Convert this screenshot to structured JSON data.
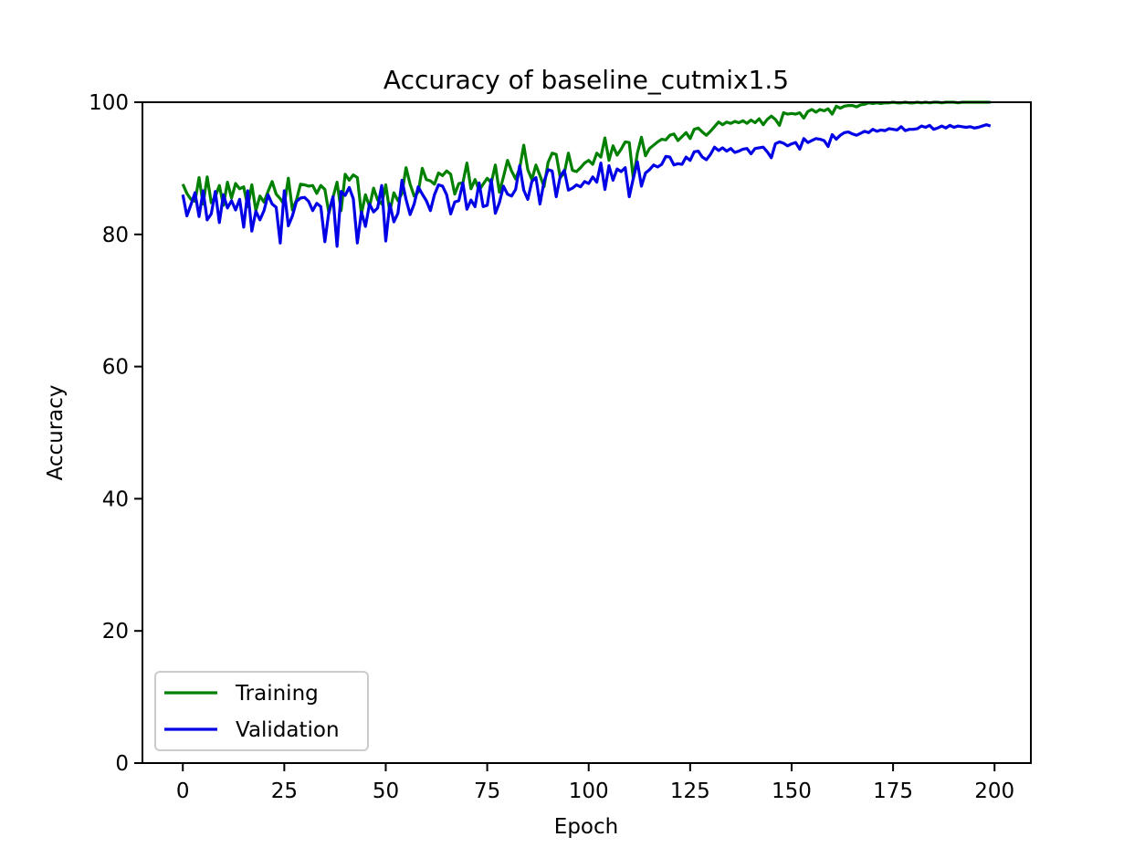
{
  "chart_data": {
    "type": "line",
    "title": "Accuracy of baseline_cutmix1.5",
    "x_label": "Epoch",
    "y_label": "Accuracy",
    "x": [
      0,
      1,
      2,
      3,
      4,
      5,
      6,
      7,
      8,
      9,
      10,
      11,
      12,
      13,
      14,
      15,
      16,
      17,
      18,
      19,
      20,
      21,
      22,
      23,
      24,
      25,
      26,
      27,
      28,
      29,
      30,
      31,
      32,
      33,
      34,
      35,
      36,
      37,
      38,
      39,
      40,
      41,
      42,
      43,
      44,
      45,
      46,
      47,
      48,
      49,
      50,
      51,
      52,
      53,
      54,
      55,
      56,
      57,
      58,
      59,
      60,
      61,
      62,
      63,
      64,
      65,
      66,
      67,
      68,
      69,
      70,
      71,
      72,
      73,
      74,
      75,
      76,
      77,
      78,
      79,
      80,
      81,
      82,
      83,
      84,
      85,
      86,
      87,
      88,
      89,
      90,
      91,
      92,
      93,
      94,
      95,
      96,
      97,
      98,
      99,
      100,
      101,
      102,
      103,
      104,
      105,
      106,
      107,
      108,
      109,
      110,
      111,
      112,
      113,
      114,
      115,
      116,
      117,
      118,
      119,
      120,
      121,
      122,
      123,
      124,
      125,
      126,
      127,
      128,
      129,
      130,
      131,
      132,
      133,
      134,
      135,
      136,
      137,
      138,
      139,
      140,
      141,
      142,
      143,
      144,
      145,
      146,
      147,
      148,
      149,
      150,
      151,
      152,
      153,
      154,
      155,
      156,
      157,
      158,
      159,
      160,
      161,
      162,
      163,
      164,
      165,
      166,
      167,
      168,
      169,
      170,
      171,
      172,
      173,
      174,
      175,
      176,
      177,
      178,
      179,
      180,
      181,
      182,
      183,
      184,
      185,
      186,
      187,
      188,
      189,
      190,
      191,
      192,
      193,
      194,
      195,
      196,
      197,
      198,
      199
    ],
    "series": [
      {
        "name": "Training",
        "color": "#008000",
        "values": [
          87.6,
          86.2,
          85.3,
          85.0,
          88.6,
          84.6,
          88.7,
          84.8,
          85.7,
          87.4,
          84.4,
          87.9,
          85.5,
          87.7,
          86.9,
          87.2,
          84.2,
          87.5,
          83.6,
          85.8,
          84.9,
          86.5,
          88.0,
          86.1,
          85.4,
          84.5,
          88.5,
          83.7,
          85.2,
          87.6,
          87.5,
          87.3,
          87.4,
          86.2,
          87.4,
          86.8,
          83.2,
          85.6,
          87.9,
          83.6,
          89.1,
          88.2,
          89.0,
          88.6,
          83.1,
          86.0,
          84.2,
          87.0,
          85.2,
          84.6,
          87.5,
          83.4,
          86.3,
          85.1,
          86.2,
          90.1,
          87.6,
          85.8,
          86.4,
          90.0,
          88.3,
          88.1,
          87.6,
          89.3,
          88.9,
          89.6,
          89.1,
          86.1,
          87.7,
          87.8,
          90.8,
          86.9,
          88.3,
          86.7,
          87.6,
          88.5,
          87.8,
          90.5,
          86.4,
          88.7,
          91.2,
          89.6,
          88.4,
          90.0,
          93.5,
          89.8,
          88.3,
          90.5,
          88.9,
          87.2,
          90.9,
          92.3,
          92.1,
          88.6,
          89.3,
          92.3,
          89.7,
          89.5,
          90.1,
          90.8,
          91.2,
          90.6,
          92.3,
          91.7,
          94.6,
          91.2,
          93.4,
          92.0,
          92.9,
          94.0,
          93.9,
          88.4,
          92.3,
          94.7,
          91.9,
          93.0,
          93.5,
          94.0,
          94.4,
          94.3,
          95.0,
          95.2,
          94.2,
          94.8,
          95.4,
          94.5,
          95.9,
          96.1,
          95.5,
          95.0,
          95.6,
          96.3,
          97.0,
          96.6,
          97.0,
          96.8,
          97.1,
          96.9,
          97.2,
          96.8,
          97.3,
          96.9,
          97.5,
          96.6,
          97.4,
          97.9,
          97.4,
          96.5,
          98.4,
          98.2,
          98.3,
          98.2,
          98.4,
          97.6,
          98.6,
          98.9,
          98.5,
          98.9,
          98.7,
          99.0,
          98.2,
          99.4,
          99.1,
          99.4,
          99.5,
          99.5,
          99.3,
          99.6,
          99.7,
          99.9,
          99.8,
          99.9,
          99.8,
          99.9,
          99.9,
          100.0,
          99.9,
          99.9,
          100.0,
          99.9,
          99.9,
          100.0,
          99.9,
          100.0,
          99.9,
          100.0,
          100.0,
          99.9,
          100.0,
          100.0,
          100.0,
          99.9,
          100.0,
          100.0,
          100.0,
          100.0,
          100.0,
          100.0,
          100.0,
          100.0
        ]
      },
      {
        "name": "Validation",
        "color": "#0000e6",
        "values": [
          86.0,
          82.8,
          84.5,
          86.3,
          82.7,
          86.6,
          82.2,
          83.1,
          86.5,
          81.8,
          86.0,
          84.0,
          85.1,
          83.7,
          85.3,
          81.1,
          86.6,
          80.5,
          83.5,
          82.2,
          83.6,
          86.0,
          84.6,
          84.1,
          78.7,
          86.6,
          81.3,
          82.8,
          85.0,
          85.5,
          85.6,
          85.0,
          83.6,
          84.7,
          84.2,
          78.9,
          83.5,
          85.7,
          78.2,
          86.5,
          85.9,
          87.1,
          85.4,
          78.7,
          83.4,
          81.2,
          84.6,
          83.4,
          84.0,
          87.4,
          79.0,
          84.6,
          81.9,
          83.2,
          88.2,
          85.3,
          83.0,
          84.6,
          87.2,
          86.1,
          85.1,
          83.6,
          86.0,
          87.5,
          87.3,
          86.0,
          83.1,
          84.9,
          85.1,
          87.8,
          83.8,
          85.2,
          84.2,
          87.8,
          84.2,
          84.4,
          88.3,
          83.2,
          84.8,
          87.3,
          86.1,
          85.8,
          86.8,
          90.4,
          86.7,
          85.3,
          88.0,
          88.6,
          84.6,
          88.0,
          89.8,
          89.6,
          85.7,
          88.8,
          89.7,
          86.7,
          87.0,
          87.5,
          87.2,
          88.0,
          87.7,
          88.7,
          87.9,
          90.8,
          86.8,
          90.4,
          88.2,
          89.9,
          89.5,
          90.1,
          85.7,
          88.5,
          91.0,
          87.3,
          89.3,
          89.8,
          90.5,
          90.2,
          90.6,
          91.8,
          91.7,
          90.5,
          90.7,
          90.6,
          91.7,
          91.2,
          92.5,
          92.6,
          91.7,
          91.3,
          92.1,
          93.2,
          92.7,
          93.1,
          92.6,
          93.0,
          92.4,
          92.6,
          92.9,
          93.0,
          92.2,
          93.0,
          93.1,
          93.2,
          92.5,
          91.6,
          93.7,
          94.0,
          93.8,
          93.4,
          93.7,
          93.9,
          92.9,
          94.5,
          93.9,
          94.2,
          94.5,
          94.4,
          94.2,
          93.3,
          95.1,
          94.4,
          95.0,
          95.4,
          95.5,
          95.2,
          95.0,
          95.3,
          95.6,
          95.4,
          95.9,
          95.6,
          95.8,
          95.7,
          96.0,
          95.9,
          95.8,
          96.3,
          95.7,
          95.9,
          95.9,
          96.0,
          96.4,
          96.2,
          96.5,
          95.9,
          96.1,
          96.4,
          96.1,
          96.5,
          96.2,
          96.4,
          96.3,
          96.2,
          96.3,
          96.1,
          96.2,
          96.4,
          96.6,
          96.4
        ]
      }
    ],
    "xlim": [
      -9.95,
      208.95
    ],
    "xticks": [
      0,
      25,
      50,
      75,
      100,
      125,
      150,
      175,
      200
    ],
    "ylim": [
      0,
      100
    ],
    "yticks": [
      0,
      20,
      40,
      60,
      80,
      100
    ],
    "legend": "lower left"
  }
}
